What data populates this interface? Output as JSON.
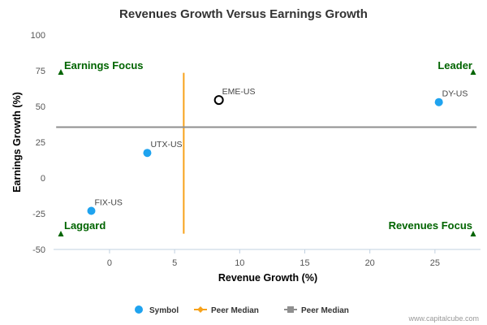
{
  "chart_data": {
    "type": "scatter",
    "title": "Revenues Growth Versus Earnings Growth",
    "xlabel": "Revenue Growth (%)",
    "ylabel": "Earnings Growth (%)",
    "xlim": [
      -4.3,
      28.5
    ],
    "ylim": [
      -50,
      100
    ],
    "x_ticks": [
      0,
      5,
      10,
      15,
      20,
      25
    ],
    "y_ticks": [
      100,
      75,
      50,
      25,
      0,
      -25,
      -50
    ],
    "grid": false,
    "points": [
      {
        "label": "FIX-US",
        "x": -1.4,
        "y": -23,
        "style": "filled",
        "color": "#1fa3ef"
      },
      {
        "label": "UTX-US",
        "x": 2.9,
        "y": 17.5,
        "style": "filled",
        "color": "#1fa3ef"
      },
      {
        "label": "EME-US",
        "x": 8.4,
        "y": 54.5,
        "style": "open",
        "color": "#000000"
      },
      {
        "label": "DY-US",
        "x": 25.3,
        "y": 53,
        "style": "filled",
        "color": "#1fa3ef"
      }
    ],
    "peer_median_revenue": 5.7,
    "peer_median_revenue_y_range": [
      -39,
      73.5
    ],
    "peer_median_earnings": 35.5,
    "peer_median_earnings_x_range": [
      -4.1,
      28.2
    ],
    "quadrants": [
      {
        "label": "Earnings Focus",
        "corner": "top-left"
      },
      {
        "label": "Leader",
        "corner": "top-right"
      },
      {
        "label": "Laggard",
        "corner": "bottom-left"
      },
      {
        "label": "Revenues Focus",
        "corner": "bottom-right"
      }
    ],
    "legend": {
      "placement": "bottom",
      "items": [
        {
          "label": "Symbol",
          "marker": "circle",
          "color": "#1fa3ef"
        },
        {
          "label": "Peer Median",
          "marker": "line-diamond",
          "color": "#f7a21b"
        },
        {
          "label": "Peer Median",
          "marker": "line-square",
          "color": "#8f8f8f"
        }
      ]
    },
    "colors": {
      "symbol": "#1fa3ef",
      "revenue_median": "#f7a21b",
      "earnings_median": "#8f8f8f",
      "quadrant_label": "#006400",
      "axis": "#c0d0e0"
    }
  },
  "credit": "www.capitalcube.com"
}
